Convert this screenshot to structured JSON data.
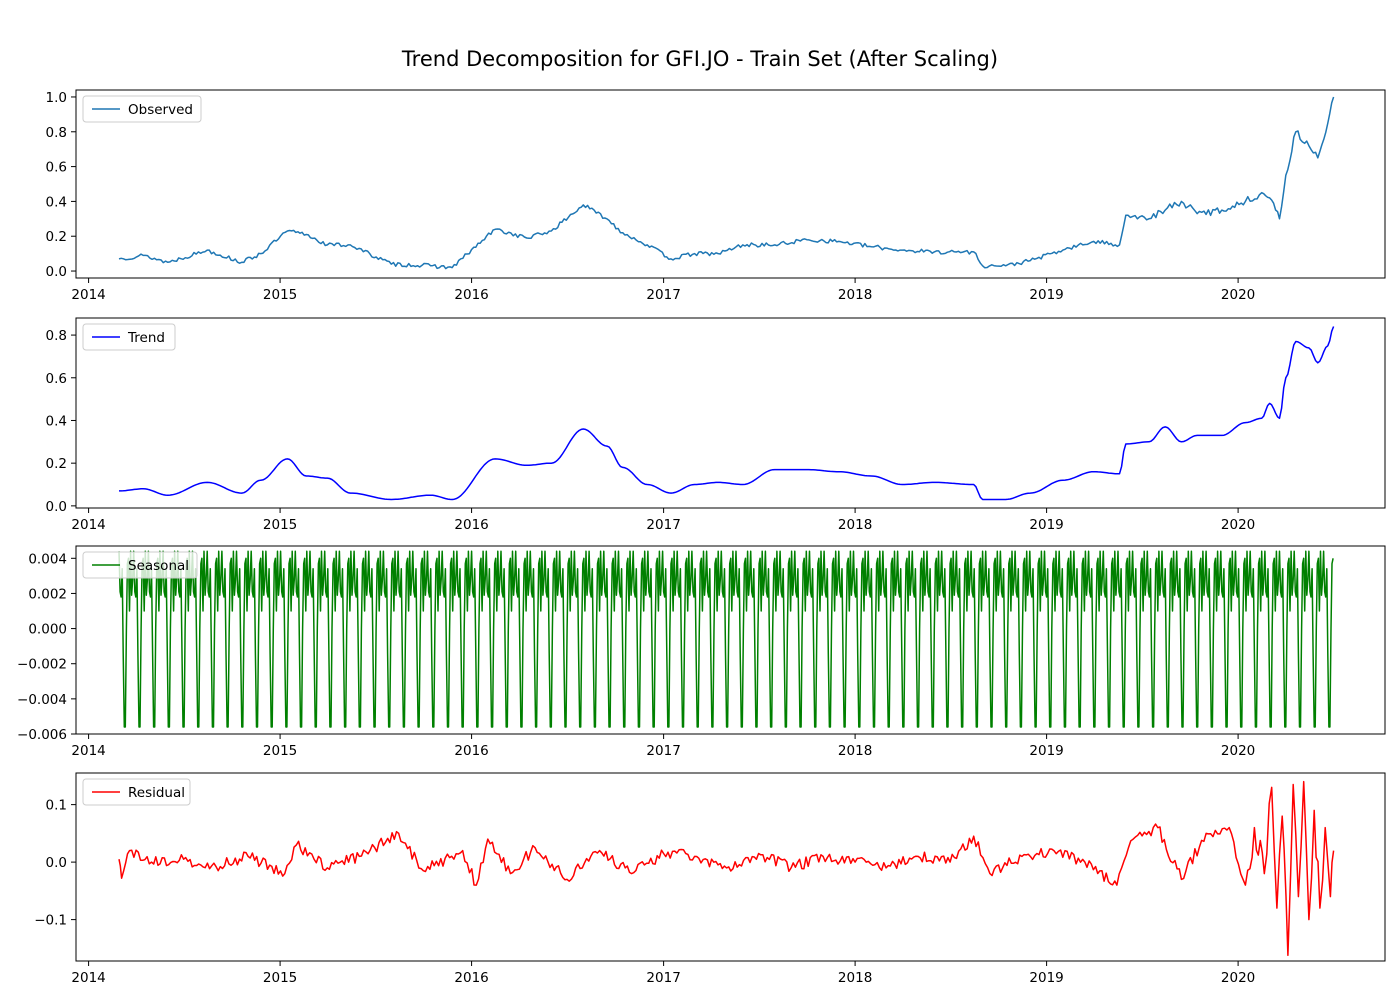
{
  "figure": {
    "title": "Trend Decomposition for GFI.JO - Train Set (After Scaling)"
  },
  "chart_data": [
    {
      "type": "line",
      "legend": "Observed",
      "legend_placement": "upper-left",
      "color": "#1f77b4",
      "x_range": [
        "2013-12-08",
        "2020-10-07"
      ],
      "ylim": [
        -0.04,
        1.04
      ],
      "x_ticks": [
        "2014",
        "2015",
        "2016",
        "2017",
        "2018",
        "2019",
        "2020"
      ],
      "y_ticks": [
        "0.0",
        "0.2",
        "0.4",
        "0.6",
        "0.8",
        "1.0"
      ],
      "series": [
        {
          "name": "Observed",
          "x": [
            "2014-02-28",
            "2014-04-15",
            "2014-06-01",
            "2014-08-15",
            "2014-10-20",
            "2014-11-25",
            "2015-01-15",
            "2015-02-20",
            "2015-04-01",
            "2015-05-15",
            "2015-08-01",
            "2015-10-15",
            "2015-11-25",
            "2016-02-15",
            "2016-04-15",
            "2016-06-01",
            "2016-08-01",
            "2016-09-15",
            "2016-10-15",
            "2016-12-01",
            "2017-01-15",
            "2017-03-01",
            "2017-04-15",
            "2017-06-01",
            "2017-08-01",
            "2017-10-01",
            "2017-12-01",
            "2018-02-01",
            "2018-04-01",
            "2018-06-01",
            "2018-08-15",
            "2018-09-01",
            "2018-10-15",
            "2018-12-01",
            "2019-02-01",
            "2019-04-01",
            "2019-05-20",
            "2019-06-01",
            "2019-07-15",
            "2019-08-15",
            "2019-09-15",
            "2019-10-15",
            "2019-12-01",
            "2020-01-15",
            "2020-02-15",
            "2020-03-01",
            "2020-03-20",
            "2020-04-01",
            "2020-04-20",
            "2020-05-15",
            "2020-06-01",
            "2020-06-20",
            "2020-07-01"
          ],
          "y": [
            0.07,
            0.09,
            0.05,
            0.12,
            0.05,
            0.1,
            0.23,
            0.21,
            0.15,
            0.15,
            0.04,
            0.03,
            0.02,
            0.24,
            0.19,
            0.23,
            0.38,
            0.3,
            0.22,
            0.15,
            0.07,
            0.1,
            0.1,
            0.15,
            0.15,
            0.18,
            0.17,
            0.14,
            0.12,
            0.11,
            0.11,
            0.03,
            0.03,
            0.06,
            0.12,
            0.17,
            0.15,
            0.32,
            0.3,
            0.35,
            0.4,
            0.33,
            0.35,
            0.4,
            0.45,
            0.42,
            0.3,
            0.55,
            0.8,
            0.72,
            0.65,
            0.85,
            1.0
          ]
        }
      ]
    },
    {
      "type": "line",
      "legend": "Trend",
      "legend_placement": "upper-left",
      "color": "#0000ff",
      "x_range": [
        "2013-12-08",
        "2020-10-07"
      ],
      "ylim": [
        -0.01,
        0.88
      ],
      "x_ticks": [
        "2014",
        "2015",
        "2016",
        "2017",
        "2018",
        "2019",
        "2020"
      ],
      "y_ticks": [
        "0.0",
        "0.2",
        "0.4",
        "0.6",
        "0.8"
      ],
      "series": [
        {
          "name": "Trend",
          "x": [
            "2014-02-28",
            "2014-04-15",
            "2014-06-01",
            "2014-08-15",
            "2014-10-20",
            "2014-11-25",
            "2015-01-15",
            "2015-02-20",
            "2015-04-01",
            "2015-05-15",
            "2015-08-01",
            "2015-10-15",
            "2015-11-25",
            "2016-02-15",
            "2016-04-15",
            "2016-06-01",
            "2016-08-01",
            "2016-09-15",
            "2016-10-15",
            "2016-12-01",
            "2017-01-15",
            "2017-03-01",
            "2017-04-15",
            "2017-06-01",
            "2017-08-01",
            "2017-10-01",
            "2017-12-01",
            "2018-02-01",
            "2018-04-01",
            "2018-06-01",
            "2018-08-15",
            "2018-09-01",
            "2018-10-15",
            "2018-12-01",
            "2019-02-01",
            "2019-04-01",
            "2019-05-20",
            "2019-06-01",
            "2019-07-15",
            "2019-08-15",
            "2019-09-15",
            "2019-10-15",
            "2019-12-01",
            "2020-01-15",
            "2020-02-15",
            "2020-03-01",
            "2020-03-20",
            "2020-04-01",
            "2020-04-20",
            "2020-05-15",
            "2020-06-01",
            "2020-06-20",
            "2020-07-01"
          ],
          "y": [
            0.07,
            0.08,
            0.05,
            0.11,
            0.06,
            0.12,
            0.22,
            0.14,
            0.13,
            0.06,
            0.03,
            0.05,
            0.03,
            0.22,
            0.19,
            0.2,
            0.36,
            0.28,
            0.18,
            0.1,
            0.06,
            0.1,
            0.11,
            0.1,
            0.17,
            0.17,
            0.16,
            0.14,
            0.1,
            0.11,
            0.1,
            0.03,
            0.03,
            0.06,
            0.12,
            0.16,
            0.15,
            0.29,
            0.3,
            0.37,
            0.3,
            0.33,
            0.33,
            0.39,
            0.41,
            0.48,
            0.41,
            0.6,
            0.77,
            0.74,
            0.67,
            0.75,
            0.84
          ]
        }
      ]
    },
    {
      "type": "line",
      "legend": "Seasonal",
      "legend_placement": "upper-left",
      "color": "#008000",
      "x_range": [
        "2013-12-08",
        "2020-10-07"
      ],
      "ylim": [
        -0.006,
        0.0047
      ],
      "x_ticks": [
        "2014",
        "2015",
        "2016",
        "2017",
        "2018",
        "2019",
        "2020"
      ],
      "y_ticks": [
        "0.004",
        "0.002",
        "0.000",
        "−0.002",
        "−0.004",
        "−0.006"
      ],
      "series": [
        {
          "name": "Seasonal",
          "x_start": "2014-02-28",
          "x_end": "2020-07-01",
          "period_days": 28,
          "cycle": [
            0.0044,
            0.0021,
            0.0018,
            0.0034,
            -0.0014,
            -0.0056,
            -0.0056,
            0.0,
            0.0037,
            0.004,
            0.001,
            0.0044,
            0.0019,
            0.0028
          ]
        }
      ]
    },
    {
      "type": "line",
      "legend": "Residual",
      "legend_placement": "upper-left",
      "color": "#ff0000",
      "x_range": [
        "2013-12-08",
        "2020-10-07"
      ],
      "ylim": [
        -0.172,
        0.155
      ],
      "x_ticks": [
        "2014",
        "2015",
        "2016",
        "2017",
        "2018",
        "2019",
        "2020"
      ],
      "y_ticks": [
        "0.1",
        "0.0",
        "−0.1"
      ],
      "series": [
        {
          "name": "Residual",
          "x": [
            "2014-02-28",
            "2014-03-05",
            "2014-03-20",
            "2014-05-01",
            "2014-07-01",
            "2014-09-01",
            "2014-11-01",
            "2015-01-10",
            "2015-02-01",
            "2015-04-01",
            "2015-06-01",
            "2015-08-15",
            "2015-10-01",
            "2015-12-15",
            "2016-01-10",
            "2016-02-01",
            "2016-03-15",
            "2016-05-01",
            "2016-07-01",
            "2016-09-01",
            "2016-11-01",
            "2017-01-01",
            "2017-03-01",
            "2017-05-01",
            "2017-07-01",
            "2017-09-01",
            "2017-11-01",
            "2018-01-01",
            "2018-03-01",
            "2018-05-01",
            "2018-07-01",
            "2018-08-15",
            "2018-09-15",
            "2018-11-15",
            "2019-01-15",
            "2019-03-15",
            "2019-05-15",
            "2019-06-15",
            "2019-08-01",
            "2019-09-15",
            "2019-11-01",
            "2019-12-15",
            "2020-01-15",
            "2020-02-01",
            "2020-02-20",
            "2020-03-05",
            "2020-03-15",
            "2020-03-25",
            "2020-04-05",
            "2020-04-15",
            "2020-04-25",
            "2020-05-05",
            "2020-05-15",
            "2020-05-25",
            "2020-06-05",
            "2020-06-15",
            "2020-06-25",
            "2020-07-01"
          ],
          "y": [
            0.005,
            -0.028,
            0.02,
            0.0,
            0.005,
            -0.008,
            0.01,
            -0.02,
            0.03,
            -0.01,
            0.01,
            0.05,
            -0.015,
            0.02,
            -0.04,
            0.04,
            -0.02,
            0.025,
            -0.03,
            0.02,
            -0.02,
            0.015,
            0.01,
            -0.01,
            0.015,
            -0.01,
            0.01,
            0.0,
            -0.01,
            0.01,
            0.0,
            0.045,
            -0.02,
            0.01,
            0.02,
            0.0,
            -0.04,
            0.04,
            0.06,
            -0.03,
            0.05,
            0.06,
            -0.04,
            0.06,
            -0.02,
            0.13,
            -0.08,
            0.08,
            -0.162,
            0.135,
            -0.06,
            0.14,
            -0.1,
            0.09,
            -0.08,
            0.06,
            -0.06,
            0.02
          ]
        }
      ]
    }
  ]
}
